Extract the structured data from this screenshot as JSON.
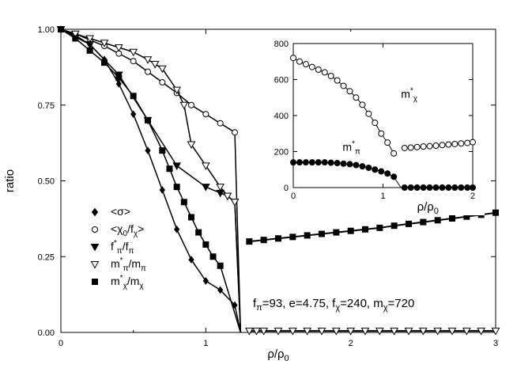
{
  "colors": {
    "ink": "#000000",
    "background": "#ffffff"
  },
  "chart_data": [
    {
      "id": "main",
      "type": "line",
      "xlabel": "ρ/ρ",
      "xlabel_sub": "0",
      "ylabel": "ratio",
      "xlim": [
        0,
        3
      ],
      "ylim": [
        0,
        1
      ],
      "xticks": [
        0,
        1,
        2,
        3
      ],
      "xtick_labels": [
        "0",
        "1",
        "2",
        "3"
      ],
      "yticks": [
        0,
        0.25,
        0.5,
        0.75,
        1.0
      ],
      "ytick_labels": [
        "0.00",
        "0.25",
        "0.50",
        "0.75",
        "1.00"
      ],
      "annotation": "fπ=93, e=4.75, fχ=240, mχ=720",
      "annotation_parts": [
        {
          "t": "f",
          "sub": "π"
        },
        {
          "t": "=93, e=4.75, f",
          "sub": "χ"
        },
        {
          "t": "=240, m",
          "sub": "χ"
        },
        {
          "t": "=720",
          "sub": ""
        }
      ],
      "legend": {
        "placement": "bottom-left",
        "entries": [
          {
            "series": "sigma",
            "label": "<σ>",
            "sub": "",
            "sup": ""
          },
          {
            "series": "chi0",
            "label": "<χ",
            "sub": "0",
            "mid": "/f",
            "sub2": "χ",
            "tail": ">"
          },
          {
            "series": "fpi",
            "label": "f",
            "sup": "*",
            "sub": "π",
            "mid": "/f",
            "sub2": "π",
            "tail": ""
          },
          {
            "series": "mpi",
            "label": "m",
            "sup": "*",
            "sub": "π",
            "mid": "/m",
            "sub2": "π",
            "tail": ""
          },
          {
            "series": "mchi",
            "label": "m",
            "sup": "*",
            "sub": "χ",
            "mid": "/m",
            "sub2": "χ",
            "tail": ""
          }
        ]
      },
      "series": [
        {
          "name": "sigma",
          "marker": "diamond-filled",
          "x": [
            0,
            0.1,
            0.2,
            0.3,
            0.4,
            0.5,
            0.6,
            0.7,
            0.8,
            0.9,
            1.0,
            1.1,
            1.2
          ],
          "y": [
            1.0,
            0.98,
            0.95,
            0.9,
            0.82,
            0.72,
            0.6,
            0.47,
            0.34,
            0.24,
            0.17,
            0.14,
            0.09
          ],
          "tail": [
            [
              1.24,
              0.0
            ]
          ]
        },
        {
          "name": "chi0",
          "marker": "circle-open",
          "x": [
            0,
            0.1,
            0.2,
            0.3,
            0.4,
            0.5,
            0.6,
            0.7,
            0.8,
            0.9,
            1.0,
            1.1,
            1.2
          ],
          "y": [
            1.0,
            0.985,
            0.965,
            0.945,
            0.92,
            0.895,
            0.86,
            0.825,
            0.79,
            0.75,
            0.72,
            0.69,
            0.66
          ],
          "tail": [
            [
              1.24,
              0.0
            ]
          ]
        },
        {
          "name": "fpi",
          "marker": "triangle-down-filled",
          "x": [
            0,
            0.2,
            0.4,
            0.6,
            0.8,
            1.0,
            1.1,
            1.15,
            1.2
          ],
          "y": [
            1.0,
            0.95,
            0.85,
            0.7,
            0.55,
            0.48,
            0.46,
            0.45,
            0.43
          ],
          "tail": [
            [
              1.24,
              0.0
            ]
          ]
        },
        {
          "name": "mpi",
          "marker": "triangle-down-open",
          "x": [
            0,
            0.1,
            0.2,
            0.3,
            0.4,
            0.5,
            0.6,
            0.65,
            0.7,
            0.8,
            0.85,
            0.9,
            1.0,
            1.1,
            1.15,
            1.2,
            1.3,
            1.35,
            1.4,
            1.5,
            1.6,
            1.7,
            1.8,
            1.9,
            2.0,
            2.1,
            2.2,
            2.3,
            2.4,
            2.5,
            2.6,
            2.7,
            2.8,
            2.9,
            3.0
          ],
          "y": [
            1.0,
            0.985,
            0.97,
            0.955,
            0.94,
            0.925,
            0.9,
            0.885,
            0.87,
            0.8,
            0.75,
            0.62,
            0.55,
            0.48,
            0.45,
            0.43,
            0.005,
            0.005,
            0.005,
            0.005,
            0.005,
            0.005,
            0.005,
            0.005,
            0.005,
            0.005,
            0.005,
            0.005,
            0.005,
            0.005,
            0.005,
            0.005,
            0.005,
            0.005,
            0.005
          ]
        },
        {
          "name": "mchi",
          "marker": "square-filled",
          "x": [
            0,
            0.1,
            0.2,
            0.3,
            0.4,
            0.5,
            0.6,
            0.7,
            0.75,
            0.8,
            0.85,
            0.9,
            0.95,
            1.0,
            1.05,
            1.1
          ],
          "y": [
            1.0,
            0.97,
            0.93,
            0.89,
            0.84,
            0.78,
            0.7,
            0.6,
            0.54,
            0.48,
            0.43,
            0.38,
            0.33,
            0.29,
            0.25,
            0.22
          ],
          "tail": [
            [
              1.24,
              0.0
            ]
          ]
        },
        {
          "name": "mchi_high",
          "marker": "square-filled",
          "x": [
            1.3,
            1.4,
            1.5,
            1.6,
            1.7,
            1.8,
            1.9,
            2.0,
            2.1,
            2.2,
            2.3,
            2.4,
            2.5,
            2.6,
            2.7,
            2.8,
            2.9,
            3.0
          ],
          "y": [
            0.3,
            0.305,
            0.31,
            0.315,
            0.32,
            0.325,
            0.33,
            0.335,
            0.34,
            0.345,
            0.352,
            0.358,
            0.364,
            0.37,
            0.376,
            0.382,
            0.388,
            0.395
          ]
        }
      ]
    },
    {
      "id": "inset",
      "type": "line",
      "xlabel": "ρ/ρ",
      "xlabel_sub": "0",
      "xlim": [
        0,
        2
      ],
      "ylim": [
        0,
        800
      ],
      "xticks": [
        0,
        1,
        2
      ],
      "xtick_labels": [
        "0",
        "1",
        "2"
      ],
      "yticks": [
        0,
        200,
        400,
        600,
        800
      ],
      "ytick_labels": [
        "0",
        "200",
        "400",
        "600",
        "800"
      ],
      "series": [
        {
          "name": "mchi_star",
          "marker": "circle-open",
          "label": "m",
          "sup": "*",
          "sub": "χ",
          "x": [
            0,
            0.07,
            0.14,
            0.21,
            0.28,
            0.35,
            0.42,
            0.49,
            0.56,
            0.63,
            0.7,
            0.77,
            0.84,
            0.91,
            0.98,
            1.05,
            1.12
          ],
          "y": [
            720,
            700,
            685,
            670,
            655,
            640,
            620,
            595,
            565,
            535,
            500,
            460,
            410,
            360,
            300,
            250,
            190
          ]
        },
        {
          "name": "mchi_star_high",
          "marker": "circle-open",
          "x": [
            1.24,
            1.31,
            1.38,
            1.45,
            1.52,
            1.59,
            1.66,
            1.73,
            1.8,
            1.87,
            1.94,
            2.0
          ],
          "y": [
            220,
            222,
            225,
            228,
            230,
            233,
            236,
            239,
            242,
            245,
            248,
            252
          ]
        },
        {
          "name": "mpi_star",
          "marker": "circle-filled",
          "label": "m",
          "sup": "*",
          "sub": "π",
          "x": [
            0,
            0.07,
            0.14,
            0.21,
            0.28,
            0.35,
            0.42,
            0.49,
            0.56,
            0.63,
            0.7,
            0.77,
            0.84,
            0.91,
            0.98,
            1.05,
            1.12
          ],
          "y": [
            140,
            140,
            140,
            140,
            140,
            140,
            138,
            136,
            133,
            130,
            125,
            118,
            110,
            100,
            90,
            78,
            60
          ]
        },
        {
          "name": "mpi_star_high",
          "marker": "circle-filled",
          "x": [
            1.24,
            1.31,
            1.38,
            1.45,
            1.52,
            1.59,
            1.66,
            1.73,
            1.8,
            1.87,
            1.94,
            2.0
          ],
          "y": [
            0,
            0,
            0,
            0,
            0,
            0,
            0,
            0,
            0,
            0,
            0,
            0
          ]
        }
      ]
    }
  ]
}
